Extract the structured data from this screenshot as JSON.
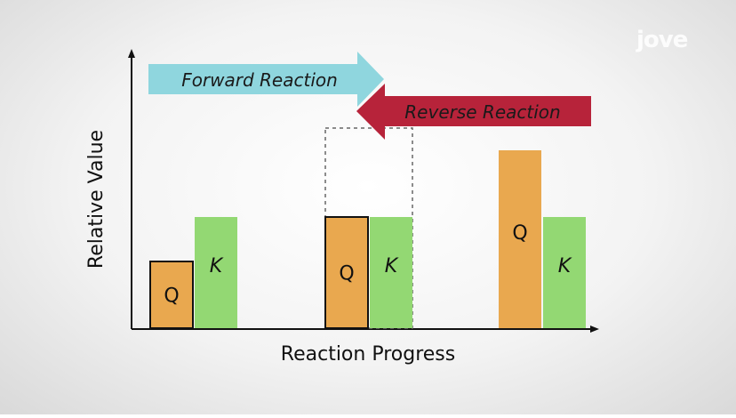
{
  "chart_data": {
    "type": "bar",
    "xlabel": "Reaction Progress",
    "ylabel": "Relative Value",
    "series": [
      {
        "name": "Q",
        "values": [
          1.5,
          2.5,
          4.0
        ]
      },
      {
        "name": "K",
        "values": [
          2.5,
          2.5,
          2.5
        ]
      }
    ],
    "ylim": [
      0,
      7
    ],
    "grid": false,
    "legend": "none",
    "annotations": {
      "forward_arrow": "Forward Reaction",
      "reverse_arrow": "Reverse Reaction"
    },
    "dashed_target_value": 4.5
  },
  "bar_letters": {
    "q": "Q",
    "k": "K"
  },
  "logo_text": "jove",
  "colors": {
    "q_bar": "#e9a84f",
    "k_bar": "#93d873",
    "forward_arrow": "#8fd6de",
    "reverse_arrow": "#b7233a",
    "axis": "#111111"
  }
}
